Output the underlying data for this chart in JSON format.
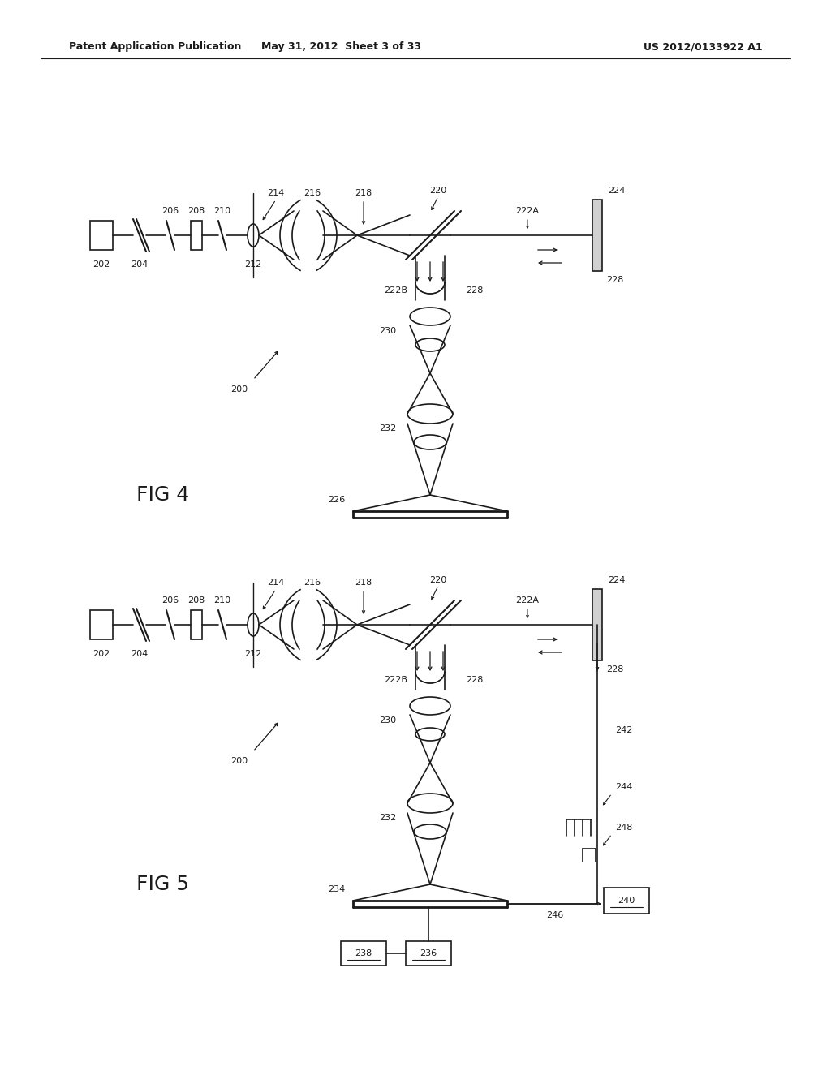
{
  "bg_color": "#ffffff",
  "line_color": "#1a1a1a",
  "header_left": "Patent Application Publication",
  "header_center": "May 31, 2012  Sheet 3 of 33",
  "header_right": "US 2012/0133922 A1",
  "fig4_label": "FIG 4",
  "fig5_label": "FIG 5"
}
